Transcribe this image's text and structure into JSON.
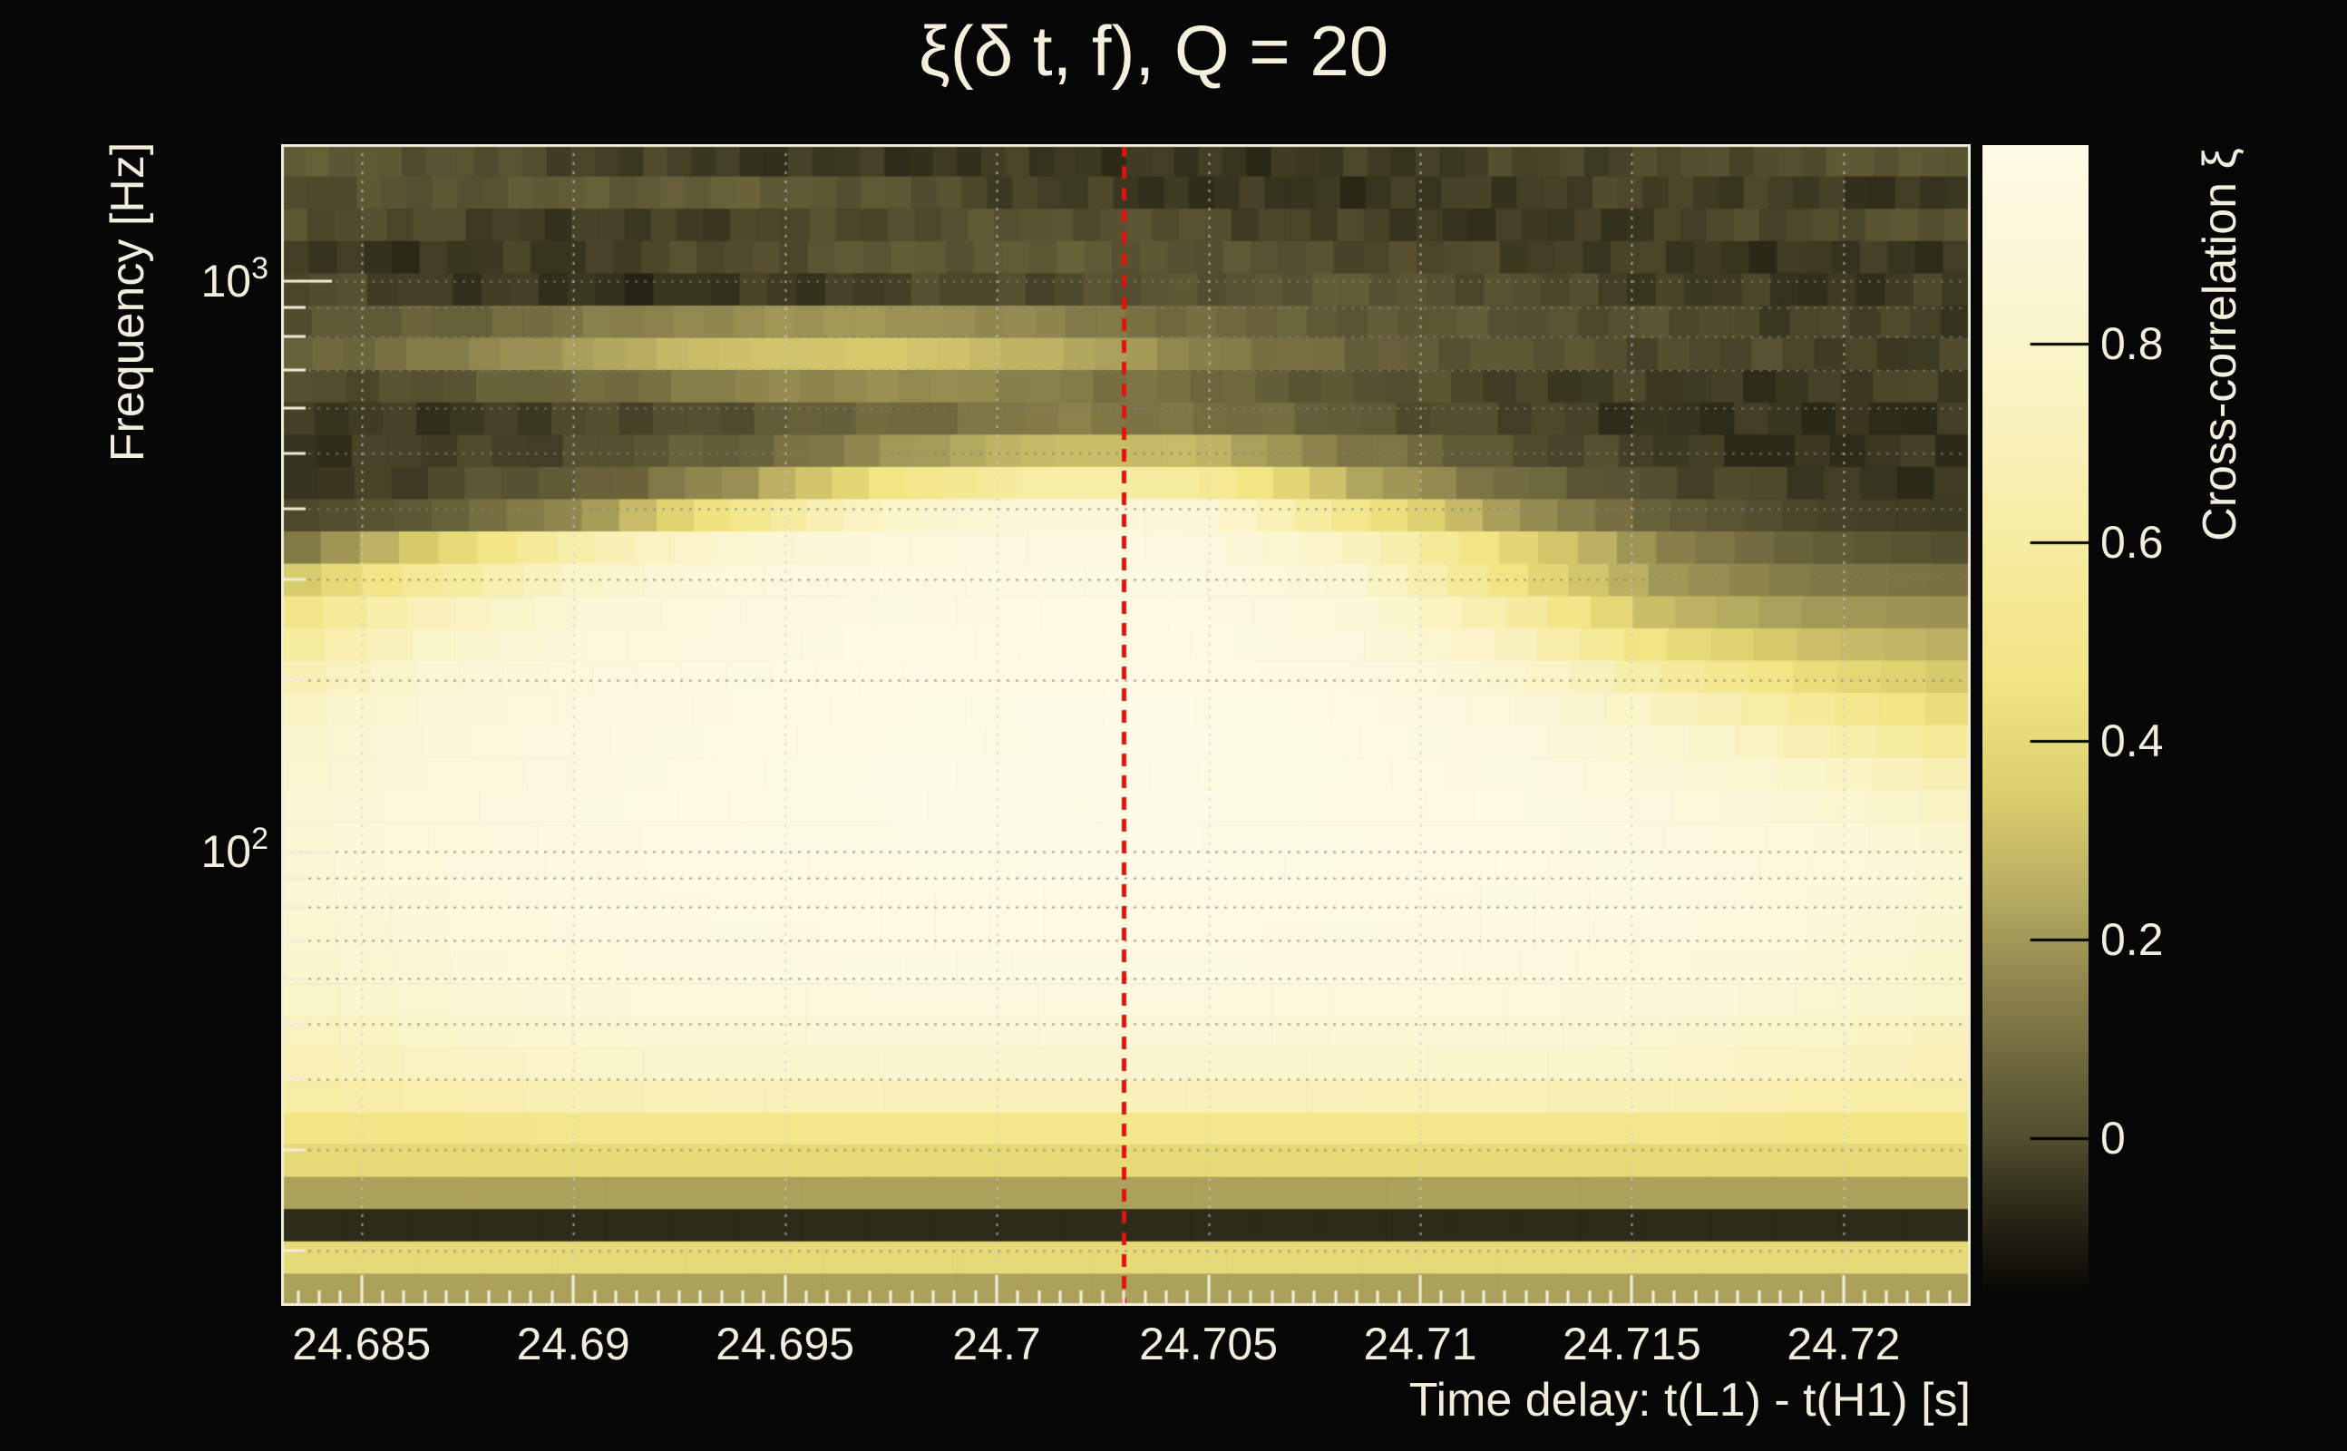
{
  "chart_data": {
    "type": "heatmap",
    "title": "ξ(δ t, f), Q = 20",
    "xlabel": "Time delay: t(L1) - t(H1) [s]",
    "ylabel": "Frequency [Hz]",
    "colorbar_label": "Cross-correlation ξ",
    "x_range": [
      24.6831,
      24.723
    ],
    "y_range_hz": [
      16,
      1740
    ],
    "y_scale": "log10",
    "value_range": [
      -0.16,
      1.0
    ],
    "grid": true,
    "x_major_ticks": [
      24.685,
      24.69,
      24.695,
      24.7,
      24.705,
      24.71,
      24.715,
      24.72
    ],
    "x_tick_labels": [
      "24.685",
      "24.69",
      "24.695",
      "24.7",
      "24.705",
      "24.71",
      "24.715",
      "24.72"
    ],
    "x_minor_step": 0.0005,
    "y_ticks": [
      {
        "base": "10",
        "exp": "3",
        "f": 1000
      },
      {
        "base": "10",
        "exp": "2",
        "f": 100
      }
    ],
    "y_grid_freqs": [
      1000,
      900,
      800,
      700,
      600,
      500,
      400,
      300,
      200,
      100,
      90,
      80,
      70,
      60,
      50,
      40,
      30,
      20
    ],
    "marker_line": {
      "x": 24.703,
      "color": "#e0140e",
      "style": "dashed"
    },
    "colorbar_ticks": [
      {
        "label": "0.8",
        "value": 0.8
      },
      {
        "label": "0.6",
        "value": 0.6
      },
      {
        "label": "0.4",
        "value": 0.4
      },
      {
        "label": "0.2",
        "value": 0.2
      },
      {
        "label": "0",
        "value": 0.0
      }
    ],
    "colormap_stops": [
      {
        "v": -0.16,
        "rgb": [
          6,
          6,
          3
        ]
      },
      {
        "v": -0.08,
        "rgb": [
          40,
          38,
          22
        ]
      },
      {
        "v": 0.0,
        "rgb": [
          82,
          77,
          46
        ]
      },
      {
        "v": 0.05,
        "rgb": [
          100,
          94,
          56
        ]
      },
      {
        "v": 0.15,
        "rgb": [
          140,
          131,
          76
        ]
      },
      {
        "v": 0.25,
        "rgb": [
          185,
          174,
          98
        ]
      },
      {
        "v": 0.35,
        "rgb": [
          220,
          208,
          110
        ]
      },
      {
        "v": 0.45,
        "rgb": [
          240,
          228,
          130
        ]
      },
      {
        "v": 0.55,
        "rgb": [
          245,
          234,
          150
        ]
      },
      {
        "v": 0.7,
        "rgb": [
          249,
          241,
          185
        ]
      },
      {
        "v": 0.85,
        "rgb": [
          251,
          246,
          210
        ]
      },
      {
        "v": 1.0,
        "rgb": [
          253,
          250,
          230
        ]
      }
    ],
    "time_anchors": [
      24.683,
      24.6866,
      24.6903,
      24.6939,
      24.6975,
      24.7012,
      24.7048,
      24.7084,
      24.7121,
      24.7157,
      24.7193,
      24.723
    ],
    "rows": [
      {
        "f": 1630,
        "xi": [
          0.04,
          0.02,
          -0.02,
          -0.04,
          -0.05,
          -0.04,
          -0.05,
          -0.04,
          -0.02,
          -0.01,
          0.01,
          0.04
        ]
      },
      {
        "f": 1431,
        "xi": [
          -0.01,
          0.02,
          0.04,
          0.05,
          0.02,
          -0.03,
          -0.05,
          -0.05,
          -0.03,
          -0.02,
          -0.04,
          -0.05
        ]
      },
      {
        "f": 1256,
        "xi": [
          0.02,
          -0.01,
          -0.04,
          -0.02,
          0.0,
          0.02,
          0.0,
          -0.03,
          -0.05,
          -0.03,
          0.0,
          0.02
        ]
      },
      {
        "f": 1103,
        "xi": [
          -0.04,
          -0.05,
          -0.03,
          0.0,
          0.03,
          0.04,
          0.02,
          0.0,
          -0.02,
          -0.04,
          -0.05,
          -0.04
        ]
      },
      {
        "f": 968,
        "xi": [
          0.0,
          -0.03,
          -0.06,
          -0.05,
          -0.02,
          0.0,
          0.02,
          0.03,
          0.0,
          -0.03,
          -0.05,
          -0.03
        ]
      },
      {
        "f": 850,
        "xi": [
          0.02,
          0.05,
          0.12,
          0.18,
          0.2,
          0.15,
          0.08,
          0.04,
          0.02,
          0.0,
          -0.02,
          -0.03
        ]
      },
      {
        "f": 746,
        "xi": [
          0.05,
          0.12,
          0.22,
          0.31,
          0.33,
          0.26,
          0.15,
          0.06,
          0.02,
          0.0,
          -0.02,
          -0.03
        ]
      },
      {
        "f": 655,
        "xi": [
          -0.02,
          0.02,
          0.08,
          0.15,
          0.18,
          0.14,
          0.08,
          0.02,
          -0.02,
          -0.04,
          -0.04,
          -0.02
        ]
      },
      {
        "f": 575,
        "xi": [
          -0.05,
          -0.04,
          -0.02,
          0.02,
          0.08,
          0.13,
          0.11,
          0.04,
          -0.02,
          -0.05,
          -0.06,
          -0.05
        ]
      },
      {
        "f": 505,
        "xi": [
          -0.05,
          -0.03,
          0.0,
          0.06,
          0.18,
          0.3,
          0.28,
          0.12,
          0.02,
          -0.04,
          -0.06,
          -0.05
        ]
      },
      {
        "f": 443,
        "xi": [
          -0.04,
          -0.02,
          0.05,
          0.18,
          0.46,
          0.63,
          0.58,
          0.25,
          0.08,
          0.0,
          -0.04,
          -0.05
        ]
      },
      {
        "f": 389,
        "xi": [
          -0.02,
          0.04,
          0.18,
          0.5,
          0.8,
          0.9,
          0.88,
          0.5,
          0.2,
          0.05,
          -0.02,
          -0.04
        ]
      },
      {
        "f": 341,
        "xi": [
          0.08,
          0.35,
          0.65,
          0.85,
          0.92,
          0.95,
          0.94,
          0.75,
          0.4,
          0.15,
          0.05,
          0.0
        ]
      },
      {
        "f": 300,
        "xi": [
          0.3,
          0.55,
          0.8,
          0.92,
          0.95,
          0.96,
          0.96,
          0.85,
          0.45,
          0.2,
          0.12,
          0.1
        ]
      },
      {
        "f": 263,
        "xi": [
          0.45,
          0.7,
          0.88,
          0.94,
          0.96,
          0.97,
          0.97,
          0.9,
          0.62,
          0.28,
          0.2,
          0.18
        ]
      },
      {
        "f": 231,
        "xi": [
          0.55,
          0.8,
          0.91,
          0.95,
          0.97,
          0.98,
          0.98,
          0.93,
          0.75,
          0.42,
          0.3,
          0.25
        ]
      },
      {
        "f": 203,
        "xi": [
          0.65,
          0.85,
          0.93,
          0.96,
          0.98,
          0.98,
          0.98,
          0.95,
          0.85,
          0.6,
          0.42,
          0.32
        ]
      },
      {
        "f": 178,
        "xi": [
          0.75,
          0.88,
          0.94,
          0.97,
          0.98,
          0.99,
          0.99,
          0.97,
          0.91,
          0.75,
          0.55,
          0.4
        ]
      },
      {
        "f": 156,
        "xi": [
          0.8,
          0.9,
          0.95,
          0.97,
          0.98,
          0.99,
          0.99,
          0.98,
          0.94,
          0.85,
          0.68,
          0.52
        ]
      },
      {
        "f": 137,
        "xi": [
          0.82,
          0.91,
          0.95,
          0.98,
          0.99,
          0.99,
          0.99,
          0.98,
          0.96,
          0.9,
          0.8,
          0.65
        ]
      },
      {
        "f": 120,
        "xi": [
          0.84,
          0.92,
          0.96,
          0.98,
          0.99,
          0.99,
          0.99,
          0.98,
          0.97,
          0.93,
          0.86,
          0.75
        ]
      },
      {
        "f": 106,
        "xi": [
          0.85,
          0.92,
          0.96,
          0.98,
          0.99,
          0.99,
          0.99,
          0.98,
          0.97,
          0.95,
          0.9,
          0.82
        ]
      },
      {
        "f": 93,
        "xi": [
          0.85,
          0.92,
          0.96,
          0.98,
          0.98,
          0.99,
          0.99,
          0.98,
          0.97,
          0.96,
          0.92,
          0.85
        ]
      },
      {
        "f": 81.5,
        "xi": [
          0.84,
          0.91,
          0.95,
          0.97,
          0.98,
          0.98,
          0.98,
          0.97,
          0.96,
          0.95,
          0.91,
          0.84
        ]
      },
      {
        "f": 71.5,
        "xi": [
          0.82,
          0.9,
          0.94,
          0.96,
          0.97,
          0.97,
          0.97,
          0.96,
          0.95,
          0.94,
          0.9,
          0.82
        ]
      },
      {
        "f": 62.8,
        "xi": [
          0.8,
          0.88,
          0.92,
          0.95,
          0.96,
          0.96,
          0.96,
          0.95,
          0.94,
          0.92,
          0.88,
          0.8
        ]
      },
      {
        "f": 55.1,
        "xi": [
          0.78,
          0.85,
          0.9,
          0.92,
          0.93,
          0.93,
          0.93,
          0.92,
          0.91,
          0.9,
          0.85,
          0.78
        ]
      },
      {
        "f": 48.4,
        "xi": [
          0.72,
          0.8,
          0.85,
          0.87,
          0.88,
          0.88,
          0.88,
          0.87,
          0.86,
          0.85,
          0.8,
          0.72
        ]
      },
      {
        "f": 42.5,
        "xi": [
          0.68,
          0.75,
          0.8,
          0.82,
          0.83,
          0.83,
          0.83,
          0.82,
          0.81,
          0.8,
          0.75,
          0.68
        ]
      },
      {
        "f": 37.3,
        "xi": [
          0.6,
          0.65,
          0.68,
          0.7,
          0.7,
          0.7,
          0.7,
          0.7,
          0.69,
          0.68,
          0.65,
          0.6
        ]
      },
      {
        "f": 32.7,
        "xi": [
          0.46,
          0.48,
          0.5,
          0.5,
          0.5,
          0.5,
          0.5,
          0.5,
          0.5,
          0.5,
          0.48,
          0.46
        ]
      },
      {
        "f": 28.7,
        "xi": [
          0.4,
          0.4,
          0.41,
          0.41,
          0.4,
          0.4,
          0.4,
          0.41,
          0.41,
          0.4,
          0.4,
          0.4
        ]
      },
      {
        "f": 25.2,
        "xi": [
          0.22,
          0.22,
          0.22,
          0.22,
          0.22,
          0.22,
          0.22,
          0.22,
          0.22,
          0.22,
          0.22,
          0.22
        ]
      },
      {
        "f": 22.1,
        "xi": [
          -0.07,
          -0.07,
          -0.07,
          -0.07,
          -0.07,
          -0.07,
          -0.07,
          -0.07,
          -0.07,
          -0.07,
          -0.07,
          -0.07
        ]
      },
      {
        "f": 19.4,
        "xi": [
          0.4,
          0.4,
          0.4,
          0.4,
          0.4,
          0.4,
          0.4,
          0.4,
          0.4,
          0.4,
          0.4,
          0.4
        ]
      },
      {
        "f": 17.1,
        "xi": [
          0.22,
          0.22,
          0.22,
          0.22,
          0.22,
          0.22,
          0.22,
          0.22,
          0.22,
          0.22,
          0.22,
          0.22
        ]
      }
    ]
  },
  "colors": {
    "background": "#060606",
    "text": "#f2eedd",
    "frame": "#f2eedd",
    "marker_red": "#e0140e",
    "grid_h": "rgba(130,130,130,0.75)",
    "grid_v": "rgba(205,205,205,0.7)"
  }
}
